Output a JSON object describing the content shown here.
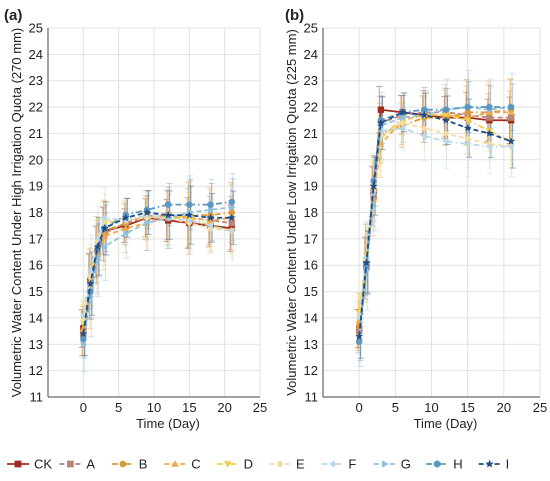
{
  "chart_data": [
    {
      "panel_label": "(a)",
      "type": "line",
      "xlabel": "Time (Day)",
      "ylabel": "Volumetric Water Content Under High Irrigation Quota (270 mm)",
      "xlim": [
        -5,
        25
      ],
      "ylim": [
        11,
        25
      ],
      "xticks": [
        0,
        5,
        10,
        15,
        20,
        25
      ],
      "yticks": [
        11,
        12,
        13,
        14,
        15,
        16,
        17,
        18,
        19,
        20,
        21,
        22,
        23,
        24,
        25
      ],
      "grid": true,
      "x": [
        0,
        1,
        2,
        3,
        6,
        9,
        12,
        15,
        18,
        21
      ],
      "series": [
        {
          "name": "CK",
          "values": [
            13.6,
            15.4,
            16.5,
            17.3,
            17.5,
            17.8,
            17.7,
            17.6,
            17.5,
            17.4
          ]
        },
        {
          "name": "A",
          "values": [
            13.4,
            15.2,
            16.4,
            17.2,
            17.6,
            17.8,
            17.9,
            17.8,
            17.7,
            17.6
          ]
        },
        {
          "name": "B",
          "values": [
            13.5,
            15.3,
            16.6,
            17.3,
            17.6,
            17.9,
            17.8,
            17.9,
            17.9,
            18.0
          ]
        },
        {
          "name": "C",
          "values": [
            13.6,
            15.1,
            16.3,
            17.1,
            17.4,
            17.6,
            17.8,
            17.8,
            17.7,
            17.8
          ]
        },
        {
          "name": "D",
          "values": [
            13.8,
            15.5,
            16.8,
            17.6,
            17.7,
            17.8,
            17.9,
            17.8,
            17.5,
            17.3
          ]
        },
        {
          "name": "E",
          "values": [
            13.9,
            15.6,
            16.9,
            17.7,
            17.7,
            17.8,
            17.8,
            17.6,
            17.4,
            17.3
          ]
        },
        {
          "name": "F",
          "values": [
            14.1,
            15.8,
            17.0,
            17.8,
            17.7,
            17.9,
            17.8,
            17.7,
            17.5,
            17.3
          ]
        },
        {
          "name": "G",
          "values": [
            13.0,
            14.8,
            16.2,
            16.7,
            17.2,
            17.6,
            17.8,
            18.0,
            18.1,
            18.2
          ]
        },
        {
          "name": "H",
          "values": [
            13.2,
            15.0,
            16.6,
            17.4,
            17.9,
            18.1,
            18.3,
            18.3,
            18.3,
            18.4
          ]
        },
        {
          "name": "I",
          "values": [
            13.4,
            15.3,
            16.7,
            17.4,
            17.8,
            18.0,
            17.9,
            17.9,
            17.8,
            17.8
          ]
        }
      ]
    },
    {
      "panel_label": "(b)",
      "type": "line",
      "xlabel": "Time (Day)",
      "ylabel": "Volumetric Water Content Under Low Irrigation Quota (225 mm)",
      "xlim": [
        -5,
        25
      ],
      "ylim": [
        11,
        25
      ],
      "xticks": [
        0,
        5,
        10,
        15,
        20,
        25
      ],
      "yticks": [
        11,
        12,
        13,
        14,
        15,
        16,
        17,
        18,
        19,
        20,
        21,
        22,
        23,
        24,
        25
      ],
      "grid": true,
      "x": [
        0,
        1,
        2,
        3,
        6,
        9,
        12,
        15,
        18,
        21
      ],
      "series": [
        {
          "name": "CK",
          "values": [
            13.6,
            16.0,
            18.8,
            21.9,
            21.8,
            21.7,
            21.6,
            21.6,
            21.5,
            21.5
          ]
        },
        {
          "name": "A",
          "values": [
            13.5,
            15.9,
            18.6,
            21.4,
            21.7,
            21.8,
            21.8,
            21.7,
            21.6,
            21.6
          ]
        },
        {
          "name": "B",
          "values": [
            13.7,
            16.2,
            18.9,
            21.0,
            21.3,
            21.6,
            21.6,
            21.8,
            21.8,
            21.9
          ]
        },
        {
          "name": "C",
          "values": [
            13.9,
            16.1,
            18.5,
            20.6,
            21.5,
            21.7,
            21.7,
            21.6,
            21.8,
            21.8
          ]
        },
        {
          "name": "D",
          "values": [
            14.2,
            16.4,
            19.0,
            20.8,
            21.6,
            21.7,
            21.7,
            21.5,
            21.1,
            20.7
          ]
        },
        {
          "name": "E",
          "values": [
            14.1,
            16.2,
            18.8,
            20.9,
            21.4,
            21.2,
            21.0,
            20.8,
            20.6,
            20.5
          ]
        },
        {
          "name": "F",
          "values": [
            14.0,
            16.3,
            19.0,
            21.1,
            21.2,
            20.9,
            20.7,
            20.6,
            20.5,
            20.5
          ]
        },
        {
          "name": "G",
          "values": [
            13.2,
            15.8,
            18.7,
            21.3,
            21.6,
            21.7,
            21.9,
            22.0,
            21.9,
            22.0
          ]
        },
        {
          "name": "H",
          "values": [
            13.1,
            16.0,
            19.2,
            21.5,
            21.8,
            21.9,
            21.9,
            22.0,
            22.0,
            22.0
          ]
        },
        {
          "name": "I",
          "values": [
            13.3,
            16.1,
            19.0,
            21.4,
            21.8,
            21.7,
            21.5,
            21.2,
            21.0,
            20.7
          ]
        }
      ]
    }
  ],
  "legend": {
    "placement": "bottom",
    "items": [
      {
        "name": "CK",
        "color": "#a02a1c",
        "marker": "square",
        "dash": "solid"
      },
      {
        "name": "A",
        "color": "#b8857a",
        "marker": "square",
        "dash": "dash"
      },
      {
        "name": "B",
        "color": "#d99a3c",
        "marker": "circle",
        "dash": "dashdot"
      },
      {
        "name": "C",
        "color": "#f0a94a",
        "marker": "triangle-up",
        "dash": "dash"
      },
      {
        "name": "D",
        "color": "#f2cf4a",
        "marker": "triangle-down",
        "dash": "dashdot"
      },
      {
        "name": "E",
        "color": "#f3dca0",
        "marker": "diamond",
        "dash": "dash"
      },
      {
        "name": "F",
        "color": "#b9d9e8",
        "marker": "triangle-left",
        "dash": "dashdot"
      },
      {
        "name": "G",
        "color": "#8fc1dc",
        "marker": "triangle-right",
        "dash": "dash"
      },
      {
        "name": "H",
        "color": "#5c97bf",
        "marker": "hexagon",
        "dash": "dashdot"
      },
      {
        "name": "I",
        "color": "#1e4d86",
        "marker": "star",
        "dash": "dash"
      }
    ]
  }
}
